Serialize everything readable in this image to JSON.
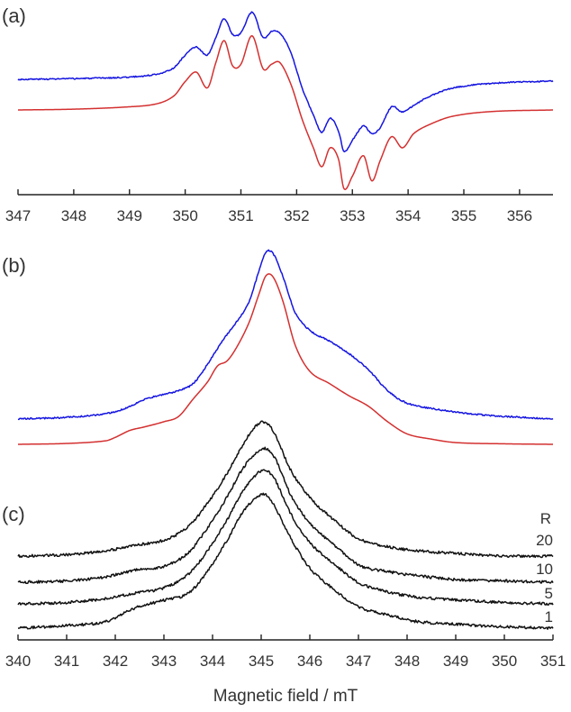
{
  "chart_data": [
    {
      "type": "line",
      "panel_label": "(a)",
      "xlim": [
        347,
        356.6
      ],
      "xticks": [
        347,
        348,
        349,
        350,
        351,
        352,
        353,
        354,
        355,
        356
      ],
      "tick_labels": [
        "347",
        "348",
        "349",
        "350",
        "351",
        "352",
        "353",
        "354",
        "355",
        "356"
      ],
      "grid": false,
      "legend": "none",
      "series": [
        {
          "color": "#1515e0",
          "noise": 0.004,
          "x": [
            347.0,
            348.0,
            349.0,
            349.5,
            349.8,
            350.0,
            350.2,
            350.4,
            350.55,
            350.7,
            350.85,
            351.0,
            351.2,
            351.4,
            351.55,
            351.7,
            351.9,
            352.1,
            352.3,
            352.45,
            352.6,
            352.75,
            352.85,
            353.0,
            353.2,
            353.35,
            353.5,
            353.7,
            353.9,
            354.1,
            354.4,
            354.8,
            355.5,
            356.6
          ],
          "y": [
            0.005,
            0.01,
            0.02,
            0.04,
            0.08,
            0.16,
            0.21,
            0.16,
            0.27,
            0.39,
            0.29,
            0.3,
            0.43,
            0.27,
            0.31,
            0.3,
            0.17,
            -0.05,
            -0.22,
            -0.33,
            -0.24,
            -0.32,
            -0.45,
            -0.38,
            -0.29,
            -0.34,
            -0.3,
            -0.17,
            -0.2,
            -0.16,
            -0.1,
            -0.05,
            -0.02,
            -0.005
          ]
        },
        {
          "color": "#d43030",
          "noise": 0,
          "x": [
            347.0,
            348.0,
            349.0,
            349.5,
            349.8,
            350.0,
            350.2,
            350.4,
            350.55,
            350.7,
            350.85,
            351.0,
            351.2,
            351.4,
            351.55,
            351.7,
            351.9,
            352.1,
            352.3,
            352.45,
            352.6,
            352.75,
            352.85,
            353.0,
            353.2,
            353.35,
            353.5,
            353.7,
            353.9,
            354.1,
            354.4,
            354.8,
            355.5,
            356.6
          ],
          "y": [
            0.0,
            0.005,
            0.02,
            0.04,
            0.09,
            0.18,
            0.24,
            0.14,
            0.3,
            0.44,
            0.28,
            0.29,
            0.47,
            0.26,
            0.29,
            0.3,
            0.16,
            -0.06,
            -0.24,
            -0.36,
            -0.24,
            -0.31,
            -0.5,
            -0.42,
            -0.29,
            -0.45,
            -0.32,
            -0.17,
            -0.24,
            -0.15,
            -0.09,
            -0.04,
            -0.01,
            0.0
          ]
        }
      ]
    },
    {
      "type": "line",
      "panel_label": "(b)",
      "xlim": [
        340,
        351
      ],
      "grid": false,
      "legend": "none",
      "series": [
        {
          "color": "#1515e0",
          "noise": 0.004,
          "x": [
            340.0,
            341.0,
            341.8,
            342.2,
            342.6,
            343.0,
            343.3,
            343.6,
            343.9,
            344.2,
            344.5,
            344.75,
            344.95,
            345.1,
            345.25,
            345.45,
            345.7,
            346.0,
            346.4,
            346.8,
            347.2,
            347.6,
            348.0,
            348.5,
            349.0,
            349.5,
            350.0,
            351.0
          ],
          "y": [
            0.0,
            0.01,
            0.03,
            0.06,
            0.11,
            0.14,
            0.16,
            0.2,
            0.31,
            0.44,
            0.55,
            0.66,
            0.83,
            0.94,
            0.93,
            0.8,
            0.6,
            0.5,
            0.44,
            0.37,
            0.28,
            0.16,
            0.09,
            0.06,
            0.04,
            0.025,
            0.015,
            0.0
          ]
        },
        {
          "color": "#d43030",
          "noise": 0,
          "x": [
            340.0,
            341.0,
            341.8,
            342.0,
            342.3,
            342.6,
            343.0,
            343.3,
            343.6,
            343.9,
            344.1,
            344.3,
            344.5,
            344.75,
            344.95,
            345.1,
            345.25,
            345.45,
            345.7,
            346.0,
            346.4,
            346.8,
            347.2,
            347.6,
            348.0,
            348.5,
            349.0,
            350.0,
            351.0
          ],
          "y": [
            0.0,
            0.005,
            0.02,
            0.04,
            0.08,
            0.1,
            0.13,
            0.16,
            0.26,
            0.36,
            0.45,
            0.48,
            0.56,
            0.7,
            0.86,
            0.97,
            0.96,
            0.82,
            0.57,
            0.42,
            0.35,
            0.28,
            0.22,
            0.13,
            0.06,
            0.03,
            0.01,
            0.003,
            0.0
          ]
        }
      ]
    },
    {
      "type": "line",
      "panel_label": "(c)",
      "xlim": [
        340,
        351
      ],
      "xticks": [
        340,
        341,
        342,
        343,
        344,
        345,
        346,
        347,
        348,
        349,
        350,
        351
      ],
      "tick_labels": [
        "340",
        "341",
        "342",
        "343",
        "344",
        "345",
        "346",
        "347",
        "348",
        "349",
        "350",
        "351"
      ],
      "xlabel": "Magnetic field / mT",
      "column_label": "R",
      "grid": false,
      "legend": "none",
      "series": [
        {
          "name": "20",
          "color": "#111111",
          "noise": 0.01,
          "x": [
            340.0,
            341.0,
            341.8,
            342.4,
            343.0,
            343.5,
            343.9,
            344.3,
            344.6,
            344.9,
            345.1,
            345.3,
            345.6,
            346.0,
            346.5,
            347.0,
            347.6,
            348.2,
            349.0,
            350.0,
            351.0
          ],
          "y": [
            0.0,
            0.01,
            0.04,
            0.08,
            0.12,
            0.22,
            0.4,
            0.62,
            0.82,
            0.98,
            1.0,
            0.9,
            0.65,
            0.44,
            0.27,
            0.13,
            0.07,
            0.04,
            0.02,
            0.0,
            0.0
          ]
        },
        {
          "name": "10",
          "color": "#111111",
          "noise": 0.01,
          "x": [
            340.0,
            341.0,
            341.8,
            342.4,
            343.0,
            343.5,
            343.9,
            344.3,
            344.6,
            344.9,
            345.1,
            345.3,
            345.6,
            346.0,
            346.5,
            347.0,
            347.6,
            348.2,
            349.0,
            350.0,
            351.0
          ],
          "y": [
            0.0,
            0.01,
            0.04,
            0.09,
            0.12,
            0.22,
            0.41,
            0.64,
            0.84,
            0.97,
            1.0,
            0.92,
            0.66,
            0.44,
            0.28,
            0.13,
            0.08,
            0.05,
            0.02,
            0.01,
            0.0
          ]
        },
        {
          "name": "5",
          "color": "#111111",
          "noise": 0.01,
          "x": [
            340.0,
            341.0,
            341.8,
            342.4,
            343.0,
            343.5,
            343.9,
            344.3,
            344.6,
            344.9,
            345.1,
            345.3,
            345.6,
            346.0,
            346.5,
            347.0,
            347.6,
            348.2,
            349.0,
            350.0,
            351.0
          ],
          "y": [
            0.0,
            0.01,
            0.04,
            0.08,
            0.12,
            0.22,
            0.4,
            0.63,
            0.83,
            0.97,
            1.0,
            0.92,
            0.68,
            0.46,
            0.3,
            0.16,
            0.09,
            0.05,
            0.03,
            0.01,
            0.0
          ]
        },
        {
          "name": "1",
          "color": "#111111",
          "noise": 0.01,
          "x": [
            340.0,
            341.0,
            341.8,
            342.4,
            343.0,
            343.5,
            343.9,
            344.3,
            344.6,
            344.9,
            345.1,
            345.3,
            345.6,
            346.0,
            346.5,
            347.0,
            347.6,
            348.2,
            349.0,
            350.0,
            351.0
          ],
          "y": [
            0.0,
            0.02,
            0.05,
            0.15,
            0.21,
            0.26,
            0.43,
            0.66,
            0.86,
            0.98,
            1.0,
            0.9,
            0.68,
            0.45,
            0.29,
            0.16,
            0.1,
            0.05,
            0.03,
            0.01,
            0.0
          ]
        }
      ]
    }
  ]
}
